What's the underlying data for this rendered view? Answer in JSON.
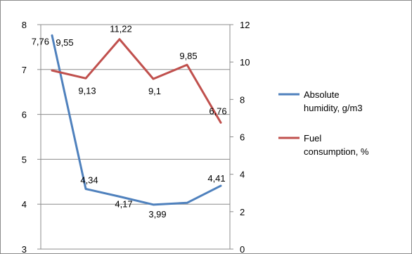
{
  "chart_data": {
    "type": "line",
    "categories": [
      "",
      "",
      "",
      "",
      "",
      ""
    ],
    "series": [
      {
        "name": "Absolute humidity, g/m3",
        "axis": "left",
        "color": "#4F81BD",
        "values": [
          7.76,
          4.34,
          4.17,
          3.99,
          4.03,
          4.41
        ],
        "labels": [
          "7,76",
          "4,34",
          "4,17",
          "3,99",
          "",
          "4,41"
        ]
      },
      {
        "name": "Fuel consumption, %",
        "axis": "right",
        "color": "#C0504D",
        "values": [
          9.55,
          9.13,
          11.22,
          9.1,
          9.85,
          6.76
        ],
        "labels": [
          "9,55",
          "9,13",
          "11,22",
          "9,1",
          "9,85",
          "6,76"
        ]
      }
    ],
    "y_left": {
      "min": 3,
      "max": 8,
      "ticks": [
        "3",
        "4",
        "5",
        "6",
        "7",
        "8"
      ]
    },
    "y_right": {
      "min": 0,
      "max": 12,
      "ticks": [
        "0",
        "2",
        "4",
        "6",
        "8",
        "10",
        "12"
      ]
    },
    "grid": true,
    "legend_position": "right"
  }
}
